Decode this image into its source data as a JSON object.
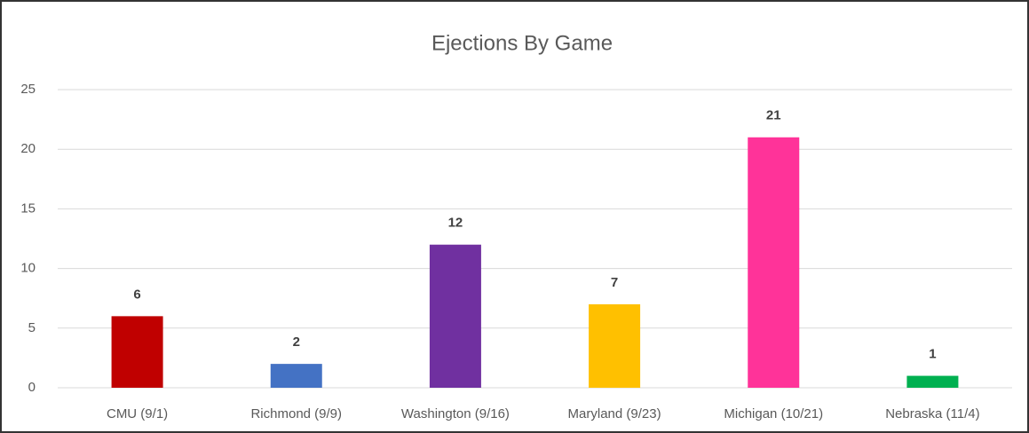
{
  "chart_data": {
    "type": "bar",
    "title": "Ejections By Game",
    "categories": [
      "CMU (9/1)",
      "Richmond (9/9)",
      "Washington (9/16)",
      "Maryland (9/23)",
      "Michigan (10/21)",
      "Nebraska (11/4)"
    ],
    "values": [
      6,
      2,
      12,
      7,
      21,
      1
    ],
    "colors": [
      "#c00000",
      "#4472c4",
      "#7030a0",
      "#ffc000",
      "#ff3399",
      "#00b050"
    ],
    "ylim": [
      0,
      25
    ],
    "yticks": [
      0,
      5,
      10,
      15,
      20,
      25
    ],
    "grid": true,
    "data_labels": true
  }
}
